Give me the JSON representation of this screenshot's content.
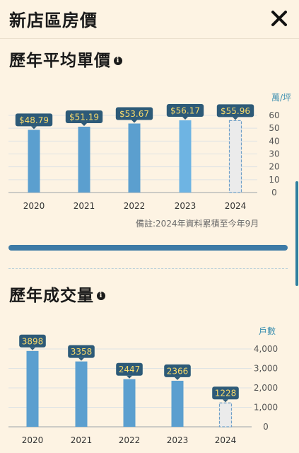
{
  "header": {
    "title": "新店區房價"
  },
  "icons": {
    "close": "close-icon",
    "info": "info-icon"
  },
  "colors": {
    "bar": "#5b9fcf",
    "bar_highlight": "#6eb4e3",
    "bar_partial_fill": "#ebebeb",
    "bar_partial_border": "#6e9fc8",
    "label_bg": "#2d5a78",
    "label_text": "#f6d96b",
    "unit_text": "#3d8fb0"
  },
  "unit_price": {
    "title": "歷年平均單價",
    "note": "備註:2024年資料累積至今年9月"
  },
  "volume": {
    "title": "歷年成交量"
  },
  "chart_data": [
    {
      "type": "bar",
      "categories": [
        "2020",
        "2021",
        "2022",
        "2023",
        "2024"
      ],
      "values": [
        48.79,
        51.19,
        53.67,
        56.17,
        55.96
      ],
      "data_labels": [
        "$48.79",
        "$51.19",
        "$53.67",
        "$56.17",
        "$55.96"
      ],
      "partial_categories": [
        "2024"
      ],
      "highlight_categories": [
        "2023"
      ],
      "unit_label": "萬/坪",
      "ylim": [
        0,
        60
      ],
      "yticks": [
        0,
        10,
        20,
        30,
        40,
        50,
        60
      ],
      "ytick_labels": [
        "0",
        "10",
        "20",
        "30",
        "40",
        "50",
        "60"
      ],
      "grid": true,
      "y_axis_side": "right"
    },
    {
      "type": "bar",
      "categories": [
        "2020",
        "2021",
        "2022",
        "2023",
        "2024"
      ],
      "values": [
        3898,
        3358,
        2447,
        2366,
        1228
      ],
      "data_labels": [
        "3898",
        "3358",
        "2447",
        "2366",
        "1228"
      ],
      "partial_categories": [
        "2024"
      ],
      "highlight_categories": [],
      "unit_label": "戶數",
      "ylim": [
        0,
        4000
      ],
      "yticks": [
        0,
        1000,
        2000,
        3000,
        4000
      ],
      "ytick_labels": [
        "0",
        "1,000",
        "2,000",
        "3,000",
        "4,000"
      ],
      "grid": true,
      "y_axis_side": "right"
    }
  ]
}
